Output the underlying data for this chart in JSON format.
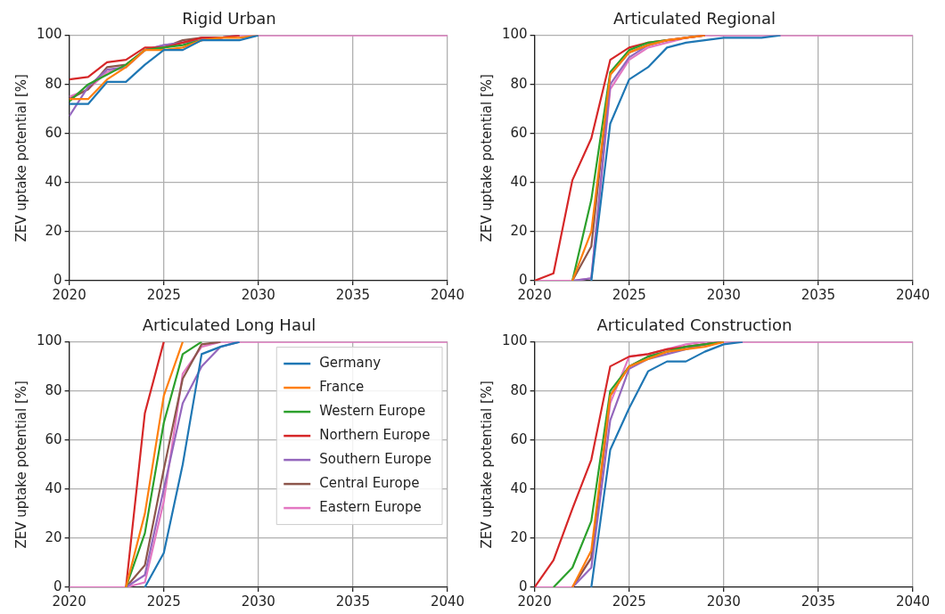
{
  "chart_data": [
    {
      "type": "line",
      "title": "Rigid Urban",
      "ylabel": "ZEV uptake potential [%]",
      "x": [
        2020,
        2021,
        2022,
        2023,
        2024,
        2025,
        2026,
        2027,
        2028,
        2029,
        2030,
        2031,
        2032,
        2033,
        2034,
        2035,
        2036,
        2037,
        2038,
        2039,
        2040
      ],
      "xlim": [
        2020,
        2040
      ],
      "xticks": [
        2020,
        2025,
        2030,
        2035,
        2040
      ],
      "ylim": [
        0,
        100
      ],
      "yticks": [
        0,
        20,
        40,
        60,
        80,
        100
      ],
      "grid": true,
      "legend": false,
      "series": [
        {
          "color": "#1f77b4",
          "values": [
            72,
            72,
            81,
            81,
            88,
            94,
            94,
            98,
            98,
            98,
            100,
            null,
            null,
            null,
            null,
            null,
            null,
            null,
            null,
            null,
            null
          ]
        },
        {
          "color": "#ff7f0e",
          "values": [
            74,
            74,
            82,
            87,
            94,
            94,
            95,
            98,
            99,
            99,
            100,
            null,
            null,
            null,
            null,
            null,
            null,
            null,
            null,
            null,
            null
          ]
        },
        {
          "color": "#2ca02c",
          "values": [
            73,
            80,
            84,
            88,
            94,
            95,
            96,
            98,
            null,
            null,
            null,
            null,
            null,
            null,
            null,
            null,
            null,
            null,
            null,
            null,
            null
          ]
        },
        {
          "color": "#d62728",
          "values": [
            82,
            83,
            89,
            90,
            95,
            95,
            97,
            99,
            99,
            100,
            null,
            null,
            null,
            null,
            null,
            null,
            null,
            null,
            null,
            null,
            null
          ]
        },
        {
          "color": "#9467bd",
          "values": [
            67,
            79,
            86,
            87,
            94,
            96,
            97,
            98,
            99,
            100,
            null,
            null,
            null,
            null,
            null,
            null,
            null,
            null,
            null,
            null,
            null
          ]
        },
        {
          "color": "#8c564b",
          "values": [
            74,
            78,
            87,
            88,
            94,
            95,
            98,
            99,
            99,
            100,
            null,
            null,
            null,
            null,
            null,
            null,
            null,
            null,
            null,
            null,
            null
          ]
        },
        {
          "color": "#e377c2",
          "values": [
            75,
            78,
            85,
            87,
            94,
            96,
            97,
            99,
            99,
            100,
            100,
            100,
            100,
            100,
            100,
            100,
            100,
            100,
            100,
            100,
            100
          ]
        }
      ]
    },
    {
      "type": "line",
      "title": "Articulated Regional",
      "ylabel": "ZEV uptake potential [%]",
      "x": [
        2020,
        2021,
        2022,
        2023,
        2024,
        2025,
        2026,
        2027,
        2028,
        2029,
        2030,
        2031,
        2032,
        2033,
        2034,
        2035,
        2036,
        2037,
        2038,
        2039,
        2040
      ],
      "xlim": [
        2020,
        2040
      ],
      "xticks": [
        2020,
        2025,
        2030,
        2035,
        2040
      ],
      "ylim": [
        0,
        100
      ],
      "yticks": [
        0,
        20,
        40,
        60,
        80,
        100
      ],
      "grid": true,
      "legend": false,
      "series": [
        {
          "color": "#1f77b4",
          "values": [
            null,
            null,
            null,
            0,
            64,
            82,
            87,
            95,
            97,
            98,
            99,
            99,
            99,
            100,
            null,
            null,
            null,
            null,
            null,
            null,
            null
          ]
        },
        {
          "color": "#ff7f0e",
          "values": [
            null,
            null,
            0,
            20,
            84,
            93,
            96,
            98,
            99,
            100,
            null,
            null,
            null,
            null,
            null,
            null,
            null,
            null,
            null,
            null,
            null
          ]
        },
        {
          "color": "#2ca02c",
          "values": [
            null,
            null,
            0,
            33,
            85,
            94,
            97,
            98,
            null,
            null,
            null,
            null,
            null,
            null,
            null,
            null,
            null,
            null,
            null,
            null,
            null
          ]
        },
        {
          "color": "#d62728",
          "values": [
            0,
            3,
            41,
            58,
            90,
            95,
            97,
            98,
            99,
            100,
            null,
            null,
            null,
            null,
            null,
            null,
            null,
            null,
            null,
            null,
            null
          ]
        },
        {
          "color": "#9467bd",
          "values": [
            null,
            null,
            0,
            1,
            80,
            91,
            96,
            98,
            null,
            null,
            null,
            null,
            null,
            null,
            null,
            null,
            null,
            null,
            null,
            null,
            null
          ]
        },
        {
          "color": "#8c564b",
          "values": [
            null,
            null,
            0,
            14,
            84,
            93,
            96,
            98,
            99,
            100,
            null,
            null,
            null,
            null,
            null,
            null,
            null,
            null,
            null,
            null,
            null
          ]
        },
        {
          "color": "#e377c2",
          "values": [
            0,
            0,
            0,
            1,
            78,
            90,
            95,
            97,
            99,
            100,
            100,
            100,
            100,
            100,
            100,
            100,
            100,
            100,
            100,
            100,
            100
          ]
        }
      ]
    },
    {
      "type": "line",
      "title": "Articulated Long Haul",
      "ylabel": "ZEV uptake potential [%]",
      "x": [
        2020,
        2021,
        2022,
        2023,
        2024,
        2025,
        2026,
        2027,
        2028,
        2029,
        2030,
        2031,
        2032,
        2033,
        2034,
        2035,
        2036,
        2037,
        2038,
        2039,
        2040
      ],
      "xlim": [
        2020,
        2040
      ],
      "xticks": [
        2020,
        2025,
        2030,
        2035,
        2040
      ],
      "ylim": [
        0,
        100
      ],
      "yticks": [
        0,
        20,
        40,
        60,
        80,
        100
      ],
      "grid": true,
      "legend": "top right",
      "series": [
        {
          "name": "Germany",
          "color": "#1f77b4",
          "values": [
            null,
            null,
            null,
            null,
            0,
            14,
            50,
            95,
            98,
            100,
            null,
            null,
            null,
            null,
            null,
            null,
            null,
            null,
            null,
            null,
            null
          ]
        },
        {
          "name": "France",
          "color": "#ff7f0e",
          "values": [
            null,
            null,
            null,
            0,
            30,
            78,
            100,
            null,
            null,
            null,
            null,
            null,
            null,
            null,
            null,
            null,
            null,
            null,
            null,
            null,
            null
          ]
        },
        {
          "name": "Western Europe",
          "color": "#2ca02c",
          "values": [
            null,
            null,
            null,
            0,
            22,
            67,
            95,
            100,
            null,
            null,
            null,
            null,
            null,
            null,
            null,
            null,
            null,
            null,
            null,
            null,
            null
          ]
        },
        {
          "name": "Northern Europe",
          "color": "#d62728",
          "values": [
            null,
            null,
            null,
            0,
            71,
            100,
            null,
            null,
            null,
            null,
            null,
            null,
            null,
            null,
            null,
            null,
            null,
            null,
            null,
            null,
            null
          ]
        },
        {
          "name": "Southern Europe",
          "color": "#9467bd",
          "values": [
            null,
            null,
            null,
            0,
            5,
            40,
            75,
            90,
            98,
            100,
            null,
            null,
            null,
            null,
            null,
            null,
            null,
            null,
            null,
            null,
            null
          ]
        },
        {
          "name": "Central Europe",
          "color": "#8c564b",
          "values": [
            null,
            null,
            null,
            0,
            9,
            48,
            85,
            99,
            100,
            null,
            null,
            null,
            null,
            null,
            null,
            null,
            null,
            null,
            null,
            null,
            null
          ]
        },
        {
          "name": "Eastern Europe",
          "color": "#e377c2",
          "values": [
            0,
            0,
            0,
            0,
            2,
            35,
            87,
            98,
            100,
            100,
            100,
            100,
            100,
            100,
            100,
            100,
            100,
            100,
            100,
            100,
            100
          ]
        }
      ]
    },
    {
      "type": "line",
      "title": "Articulated Construction",
      "ylabel": "ZEV uptake potential [%]",
      "x": [
        2020,
        2021,
        2022,
        2023,
        2024,
        2025,
        2026,
        2027,
        2028,
        2029,
        2030,
        2031,
        2032,
        2033,
        2034,
        2035,
        2036,
        2037,
        2038,
        2039,
        2040
      ],
      "xlim": [
        2020,
        2040
      ],
      "xticks": [
        2020,
        2025,
        2030,
        2035,
        2040
      ],
      "ylim": [
        0,
        100
      ],
      "yticks": [
        0,
        20,
        40,
        60,
        80,
        100
      ],
      "grid": true,
      "legend": false,
      "series": [
        {
          "color": "#1f77b4",
          "values": [
            null,
            null,
            null,
            0,
            56,
            73,
            88,
            92,
            92,
            96,
            99,
            100,
            null,
            null,
            null,
            null,
            null,
            null,
            null,
            null,
            null
          ]
        },
        {
          "color": "#ff7f0e",
          "values": [
            null,
            null,
            0,
            15,
            78,
            90,
            93,
            96,
            97,
            98,
            100,
            null,
            null,
            null,
            null,
            null,
            null,
            null,
            null,
            null,
            null
          ]
        },
        {
          "color": "#2ca02c",
          "values": [
            null,
            0,
            8,
            27,
            80,
            90,
            94,
            96,
            98,
            99,
            100,
            null,
            null,
            null,
            null,
            null,
            null,
            null,
            null,
            null,
            null
          ]
        },
        {
          "color": "#d62728",
          "values": [
            0,
            11,
            32,
            52,
            90,
            94,
            95,
            97,
            98,
            99,
            100,
            null,
            null,
            null,
            null,
            null,
            null,
            null,
            null,
            null,
            null
          ]
        },
        {
          "color": "#9467bd",
          "values": [
            null,
            null,
            0,
            8,
            68,
            89,
            93,
            95,
            97,
            99,
            100,
            null,
            null,
            null,
            null,
            null,
            null,
            null,
            null,
            null,
            null
          ]
        },
        {
          "color": "#8c564b",
          "values": [
            null,
            null,
            0,
            12,
            78,
            90,
            94,
            96,
            98,
            99,
            100,
            null,
            null,
            null,
            null,
            null,
            null,
            null,
            null,
            null,
            null
          ]
        },
        {
          "color": "#e377c2",
          "values": [
            0,
            0,
            0,
            12,
            75,
            94,
            95,
            97,
            99,
            100,
            100,
            100,
            100,
            100,
            100,
            100,
            100,
            100,
            100,
            100,
            100
          ]
        }
      ]
    }
  ]
}
